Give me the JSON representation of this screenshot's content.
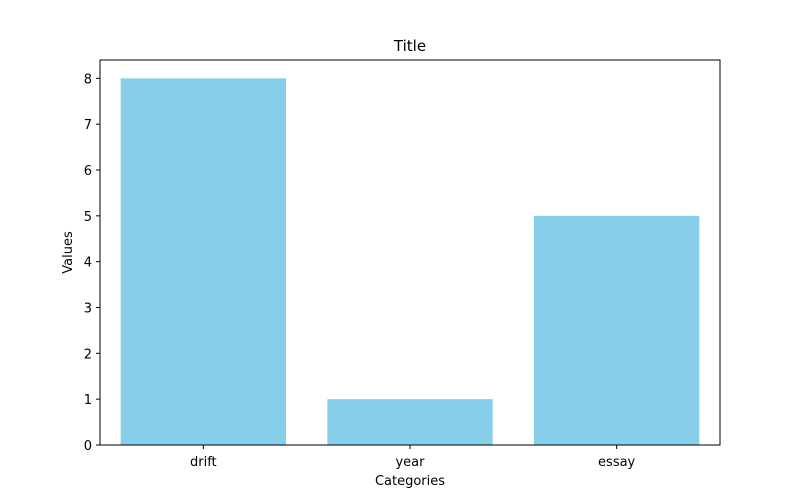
{
  "chart_data": {
    "type": "bar",
    "title": "Title",
    "xlabel": "Categories",
    "ylabel": "Values",
    "categories": [
      "drift",
      "year",
      "essay"
    ],
    "values": [
      8,
      1,
      5
    ],
    "ylim": [
      0,
      8.4
    ],
    "yticks": [
      0,
      1,
      2,
      3,
      4,
      5,
      6,
      7,
      8
    ],
    "bar_color": "#87ceeb",
    "grid": false,
    "legend": "none"
  }
}
